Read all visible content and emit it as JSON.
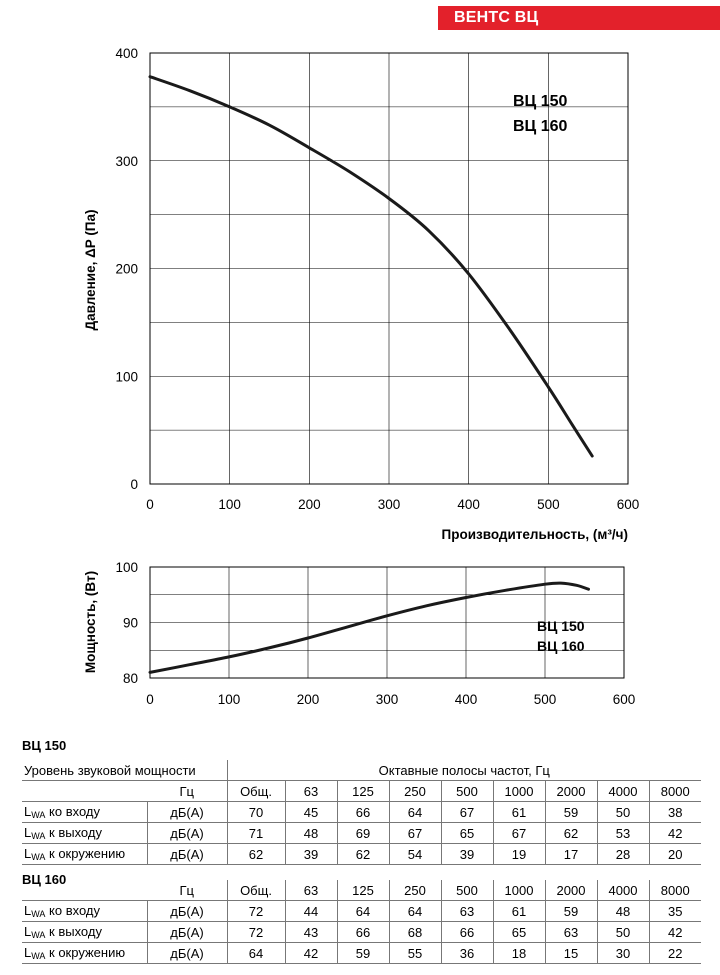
{
  "brand": "ВЕНТС ВЦ",
  "chart_data": [
    {
      "type": "line",
      "ylabel": "Давление, ΔP (Па)",
      "xlabel": "Производительность, (м³/ч)",
      "model_labels": [
        "ВЦ 150",
        "ВЦ 160"
      ],
      "xlim": [
        0,
        600
      ],
      "ylim": [
        0,
        400
      ],
      "xticks": [
        "0",
        "100",
        "200",
        "300",
        "400",
        "500",
        "600"
      ],
      "yticks": [
        "0",
        "100",
        "200",
        "300",
        "400"
      ],
      "grid": true,
      "series": [
        {
          "x": [
            0,
            50,
            100,
            150,
            200,
            250,
            300,
            350,
            400,
            450,
            500,
            530,
            555
          ],
          "y": [
            378,
            365,
            350,
            333,
            312,
            290,
            265,
            235,
            195,
            145,
            90,
            55,
            26
          ]
        }
      ]
    },
    {
      "type": "line",
      "ylabel": "Мощность, (Вт)",
      "model_labels": [
        "ВЦ 150",
        "ВЦ 160"
      ],
      "xlim": [
        0,
        600
      ],
      "ylim": [
        80,
        100
      ],
      "xticks": [
        "0",
        "100",
        "200",
        "300",
        "400",
        "500",
        "600"
      ],
      "yticks": [
        "80",
        "90",
        "100"
      ],
      "grid": true,
      "series": [
        {
          "x": [
            0,
            50,
            100,
            150,
            200,
            250,
            300,
            350,
            400,
            450,
            500,
            520,
            540,
            555
          ],
          "y": [
            81,
            82.4,
            83.8,
            85.4,
            87.2,
            89.2,
            91.2,
            93,
            94.5,
            95.8,
            96.9,
            97.1,
            96.7,
            96
          ]
        }
      ]
    }
  ],
  "tables": {
    "vc150": {
      "title": "ВЦ 150",
      "header_left": "Уровень звуковой мощности",
      "header_right": "Октавные полосы частот, Гц",
      "unit_hz": "Гц",
      "columns": [
        "Общ.",
        "63",
        "125",
        "250",
        "500",
        "1000",
        "2000",
        "4000",
        "8000"
      ],
      "rows": [
        {
          "sub": "WA",
          "label": "ко входу",
          "unit": "дБ(А)",
          "values": [
            "70",
            "45",
            "66",
            "64",
            "67",
            "61",
            "59",
            "50",
            "38"
          ]
        },
        {
          "sub": "WA",
          "label": "к выходу",
          "unit": "дБ(А)",
          "values": [
            "71",
            "48",
            "69",
            "67",
            "65",
            "67",
            "62",
            "53",
            "42"
          ]
        },
        {
          "sub": "WA",
          "label": "к окружению",
          "unit": "дБ(А)",
          "values": [
            "62",
            "39",
            "62",
            "54",
            "39",
            "19",
            "17",
            "28",
            "20"
          ]
        }
      ]
    },
    "vc160": {
      "title": "ВЦ 160",
      "unit_hz": "Гц",
      "columns": [
        "Общ.",
        "63",
        "125",
        "250",
        "500",
        "1000",
        "2000",
        "4000",
        "8000"
      ],
      "rows": [
        {
          "sub": "WA",
          "label": "ко входу",
          "unit": "дБ(А)",
          "values": [
            "72",
            "44",
            "64",
            "64",
            "63",
            "61",
            "59",
            "48",
            "35"
          ]
        },
        {
          "sub": "WA",
          "label": "к выходу",
          "unit": "дБ(А)",
          "values": [
            "72",
            "43",
            "66",
            "68",
            "66",
            "65",
            "63",
            "50",
            "42"
          ]
        },
        {
          "sub": "WA",
          "label": "к окружению",
          "unit": "дБ(А)",
          "values": [
            "64",
            "42",
            "59",
            "55",
            "36",
            "18",
            "15",
            "30",
            "22"
          ]
        }
      ]
    }
  }
}
